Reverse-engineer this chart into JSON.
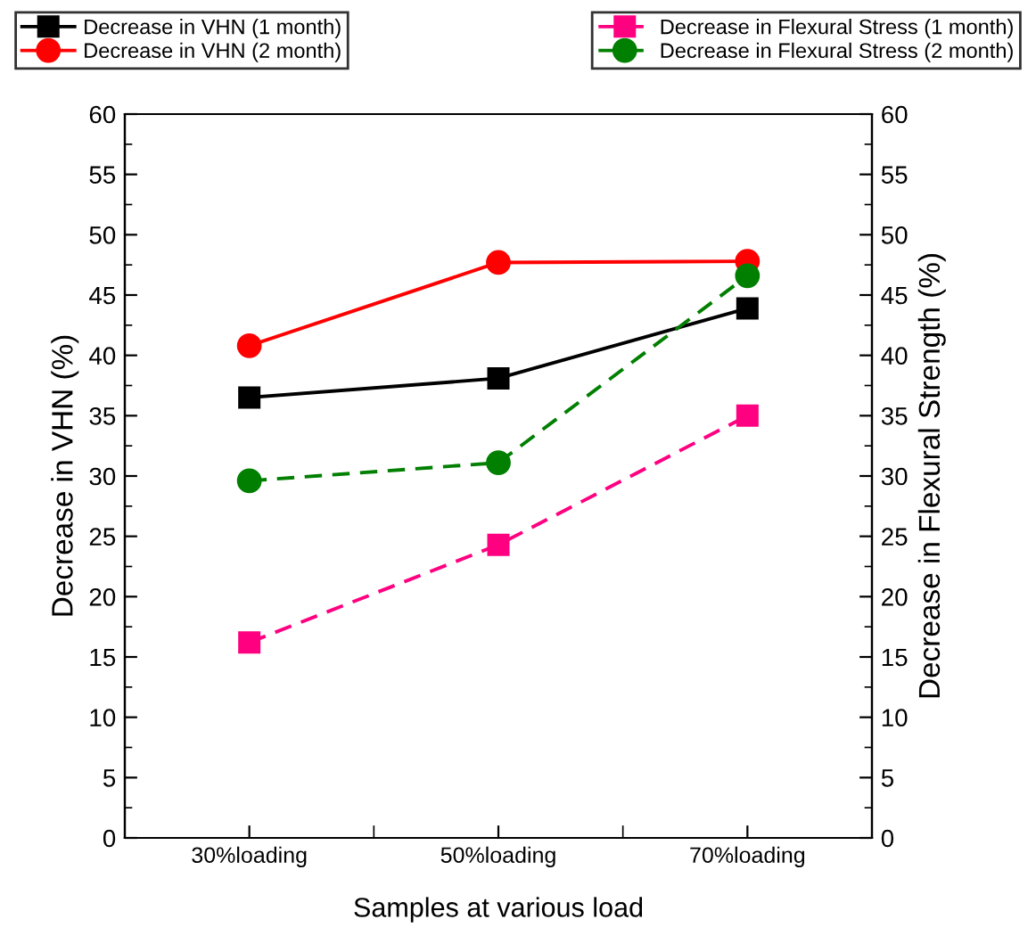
{
  "chart_data": {
    "type": "line",
    "xlabel": "Samples at various load",
    "ylabel": "Decrease in VHN (%)",
    "y2label": "Decrease in Flexural Strength (%)",
    "categories": [
      "30%loading",
      "50%loading",
      "70%loading"
    ],
    "series": [
      {
        "name": "Decrease in VHN (1 month)",
        "color": "#000000",
        "values": [
          36.5,
          38.1,
          43.9
        ],
        "marker": "square",
        "line_style": "solid"
      },
      {
        "name": "Decrease in VHN (2 month)",
        "color": "#ff0000",
        "values": [
          40.8,
          47.7,
          47.8
        ],
        "marker": "circle",
        "line_style": "solid"
      },
      {
        "name": "Decrease in Flexural Stress (1 month)",
        "color": "#ff0080",
        "values": [
          16.2,
          24.3,
          35.0
        ],
        "marker": "square",
        "line_style": "dashed",
        "axis": "y2"
      },
      {
        "name": "Decrease in Flexural Stress (2 month)",
        "color": "#007f00",
        "values": [
          29.6,
          31.1,
          46.6
        ],
        "marker": "circle",
        "line_style": "dashed",
        "axis": "y2"
      }
    ],
    "ylim": [
      0,
      60
    ],
    "yticks": [
      0,
      5,
      10,
      15,
      20,
      25,
      30,
      35,
      40,
      45,
      50,
      55,
      60
    ],
    "y2lim": [
      0,
      60
    ],
    "y2ticks": [
      0,
      5,
      10,
      15,
      20,
      25,
      30,
      35,
      40,
      45,
      50,
      55,
      60
    ],
    "grid": false,
    "legend": "top"
  }
}
